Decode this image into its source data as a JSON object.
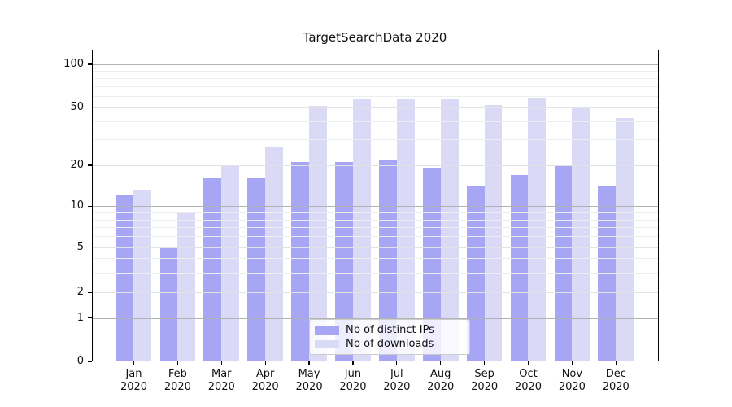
{
  "chart_data": {
    "type": "bar",
    "title": "TargetSearchData 2020",
    "categories": [
      "Jan",
      "Feb",
      "Mar",
      "Apr",
      "May",
      "Jun",
      "Jul",
      "Aug",
      "Sep",
      "Oct",
      "Nov",
      "Dec"
    ],
    "x_axis": {
      "year_label": "2020"
    },
    "y_axis": {
      "scale": "symlog",
      "ticks": [
        0,
        1,
        2,
        5,
        10,
        20,
        50,
        100
      ],
      "minor_gridlines": [
        3,
        4,
        6,
        7,
        8,
        9,
        30,
        40,
        60,
        70,
        80,
        90
      ],
      "ylim": [
        0,
        128
      ]
    },
    "series": [
      {
        "name": "Nb of distinct IPs",
        "color": "#a6a6f5",
        "values": [
          12,
          5,
          16,
          16,
          21,
          21,
          22,
          19,
          14,
          17,
          20,
          14
        ]
      },
      {
        "name": "Nb of downloads",
        "color": "#dadaf7",
        "values": [
          13,
          9,
          20,
          27,
          51,
          57,
          57,
          57,
          52,
          58,
          49,
          42
        ]
      }
    ],
    "legend": {
      "position": "lower center",
      "entries": [
        "Nb of distinct IPs",
        "Nb of downloads"
      ]
    },
    "grid": true,
    "colors": {
      "major_gridline": "#b2b2b2",
      "tick_gridline": "#e2e2e2",
      "minor_gridline": "#ededed",
      "axis": "#000000",
      "text": "#111111"
    }
  }
}
